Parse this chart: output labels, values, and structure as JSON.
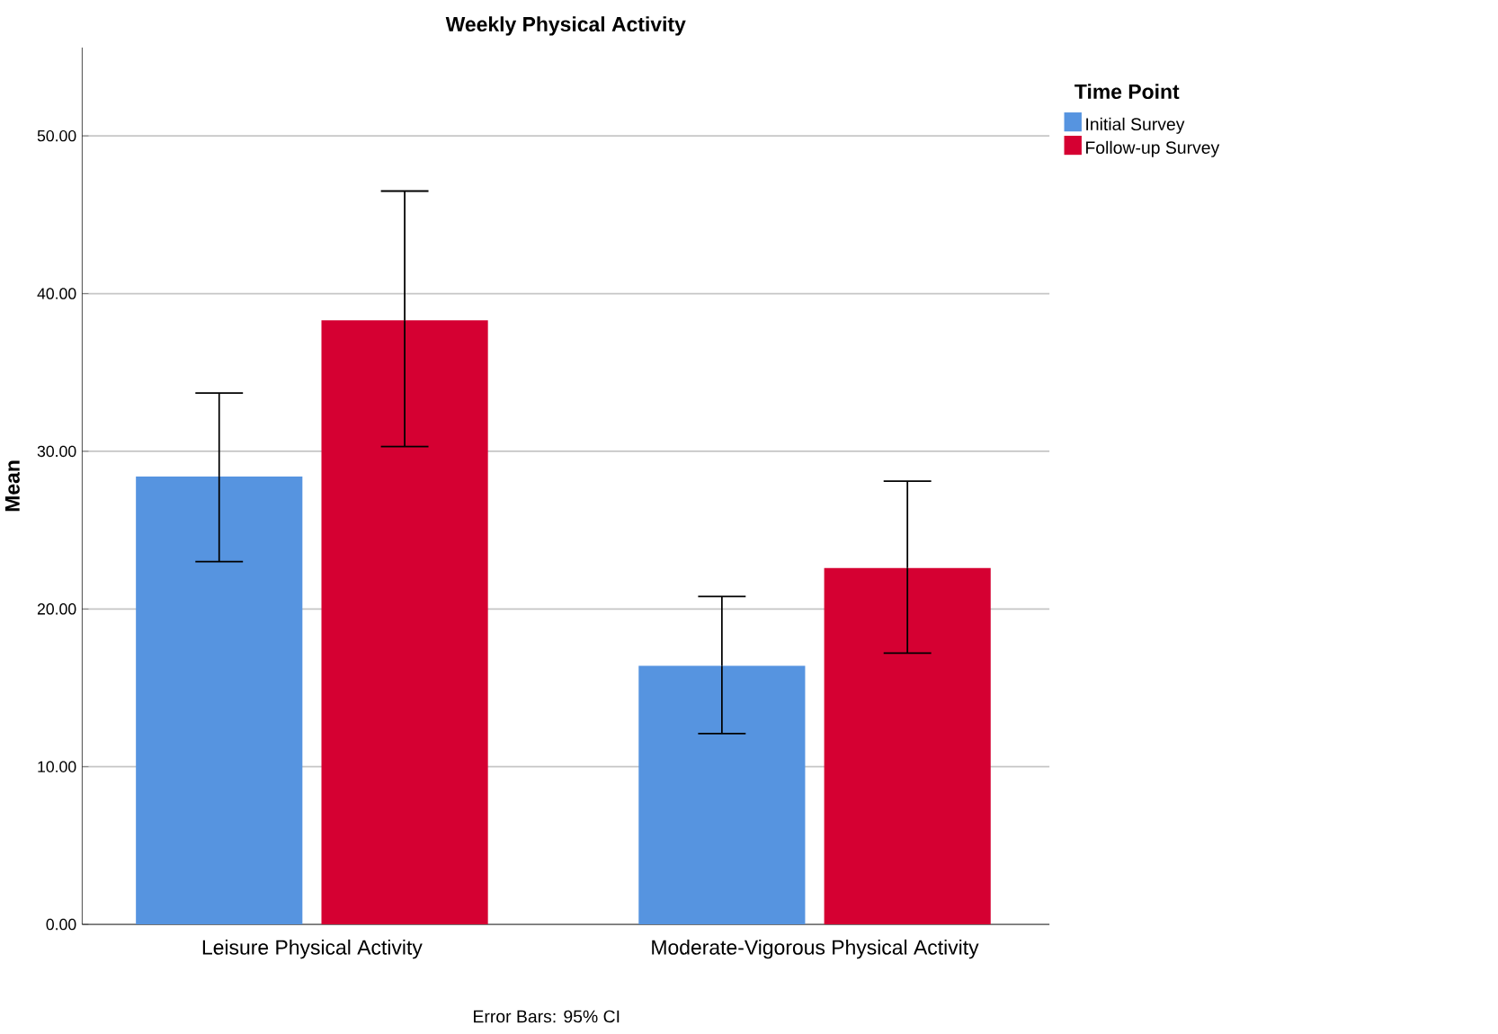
{
  "chart_data": {
    "type": "bar",
    "title": "Weekly Physical Activity",
    "ylabel": "Mean",
    "legend_title": "Time Point",
    "categories": [
      "Leisure Physical Activity",
      "Moderate-Vigorous Physical Activity"
    ],
    "series": [
      {
        "name": "Initial Survey",
        "color": "#5694e0",
        "values": [
          28.4,
          16.4
        ],
        "errors": [
          [
            23.0,
            33.7
          ],
          [
            12.1,
            20.8
          ]
        ]
      },
      {
        "name": "Follow-up Survey",
        "color": "#d50032",
        "values": [
          38.3,
          22.6
        ],
        "errors": [
          [
            30.3,
            46.5
          ],
          [
            17.2,
            28.1
          ]
        ]
      }
    ],
    "ylim": [
      0,
      55.6
    ],
    "yticks": [
      {
        "value": 0,
        "label": "0.00"
      },
      {
        "value": 10,
        "label": "10.00"
      },
      {
        "value": 20,
        "label": "20.00"
      },
      {
        "value": 30,
        "label": "30.00"
      },
      {
        "value": 40,
        "label": "40.00"
      },
      {
        "value": 50,
        "label": "50.00"
      }
    ],
    "grid": "y",
    "legend": "top right",
    "annotations": [
      "Error Bars: 95% CI"
    ]
  }
}
